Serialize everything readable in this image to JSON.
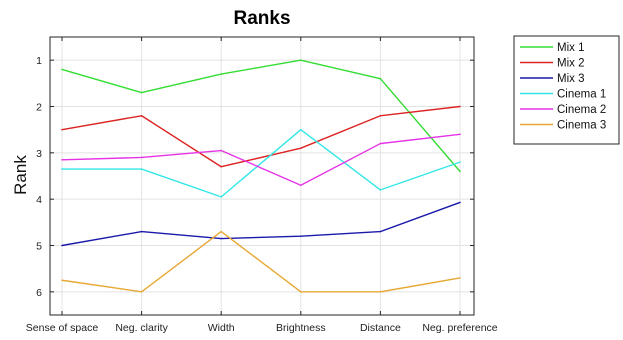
{
  "chart_data": {
    "type": "line",
    "title": "Ranks",
    "xlabel": "",
    "ylabel": "Rank",
    "categories": [
      "Sense of space",
      "Neg. clarity",
      "Width",
      "Brightness",
      "Distance",
      "Neg. preference"
    ],
    "yticks": [
      1,
      2,
      3,
      4,
      5,
      6
    ],
    "ylim": [
      6.5,
      0.5
    ],
    "y_reversed": true,
    "grid": true,
    "legend_position": "outside-top-right",
    "series": [
      {
        "name": "Mix 1",
        "color": "#33dd33",
        "values": [
          1.2,
          1.7,
          1.3,
          1.0,
          1.4,
          3.4
        ]
      },
      {
        "name": "Mix 2",
        "color": "#dd2222",
        "values": [
          2.5,
          2.2,
          3.3,
          2.9,
          2.2,
          2.0
        ]
      },
      {
        "name": "Mix 3",
        "color": "#1a1aaa",
        "values": [
          5.0,
          4.7,
          4.85,
          4.8,
          4.7,
          4.07
        ]
      },
      {
        "name": "Cinema 1",
        "color": "#33e6e6",
        "values": [
          3.35,
          3.35,
          3.95,
          2.5,
          3.8,
          3.2
        ]
      },
      {
        "name": "Cinema 2",
        "color": "#e633e6",
        "values": [
          3.15,
          3.1,
          2.95,
          3.7,
          2.8,
          2.6
        ]
      },
      {
        "name": "Cinema 3",
        "color": "#e6a833",
        "values": [
          5.75,
          6.0,
          4.7,
          6.0,
          6.0,
          5.7
        ]
      }
    ]
  }
}
